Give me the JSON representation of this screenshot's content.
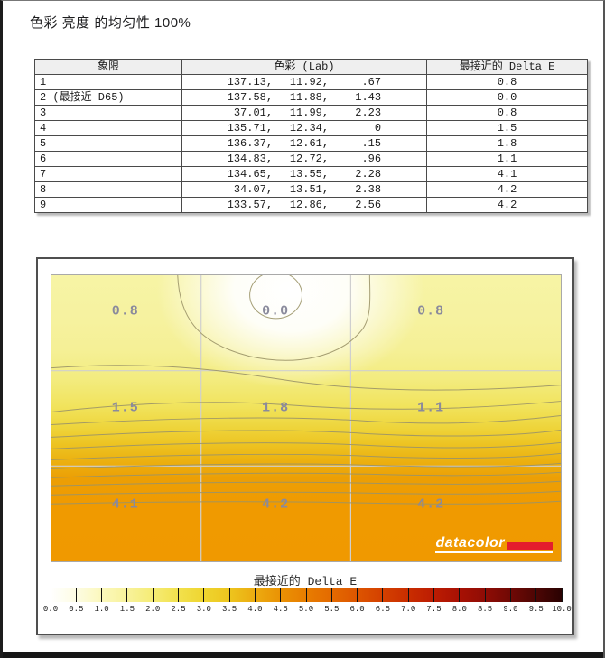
{
  "page": {
    "title": "色彩 亮度 的均匀性 100%"
  },
  "table": {
    "columns": [
      "象限",
      "色彩 (Lab)",
      "最接近的 Delta E"
    ],
    "rows": [
      {
        "quadrant": "1",
        "lab": [
          "137.13,",
          "11.92,",
          ".67"
        ],
        "delta_e": "0.8"
      },
      {
        "quadrant": "2 (最接近 D65)",
        "lab": [
          "137.58,",
          "11.88,",
          "1.43"
        ],
        "delta_e": "0.0"
      },
      {
        "quadrant": "3",
        "lab": [
          "37.01,",
          "11.99,",
          "2.23"
        ],
        "delta_e": "0.8"
      },
      {
        "quadrant": "4",
        "lab": [
          "135.71,",
          "12.34,",
          "0"
        ],
        "delta_e": "1.5"
      },
      {
        "quadrant": "5",
        "lab": [
          "136.37,",
          "12.61,",
          ".15"
        ],
        "delta_e": "1.8"
      },
      {
        "quadrant": "6",
        "lab": [
          "134.83,",
          "12.72,",
          ".96"
        ],
        "delta_e": "1.1"
      },
      {
        "quadrant": "7",
        "lab": [
          "134.65,",
          "13.55,",
          "2.28"
        ],
        "delta_e": "4.1"
      },
      {
        "quadrant": "8",
        "lab": [
          "34.07,",
          "13.51,",
          "2.38"
        ],
        "delta_e": "4.2"
      },
      {
        "quadrant": "9",
        "lab": [
          "133.57,",
          "12.86,",
          "2.56"
        ],
        "delta_e": "4.2"
      }
    ]
  },
  "heatmap": {
    "cell_labels": [
      [
        "0.8",
        "0.0",
        "0.8"
      ],
      [
        "1.5",
        "1.8",
        "1.1"
      ],
      [
        "4.1",
        "4.2",
        "4.2"
      ]
    ],
    "cell_x_percent": [
      14.5,
      44,
      74.5
    ],
    "cell_y_percent": [
      12.5,
      46.5,
      80
    ],
    "label_color": "#8a8a9c",
    "logo_text": "datacolor",
    "logo_red": "#e41d2d"
  },
  "legend": {
    "title": "最接近的 Delta E",
    "tick_labels": [
      "0.0",
      "0.5",
      "1.0",
      "1.5",
      "2.0",
      "2.5",
      "3.0",
      "3.5",
      "4.0",
      "4.5",
      "5.0",
      "5.5",
      "6.0",
      "6.5",
      "7.0",
      "7.5",
      "8.0",
      "8.5",
      "9.0",
      "9.5",
      "10.0"
    ]
  },
  "chart_data": {
    "type": "heatmap",
    "title": "色彩 亮度 的均匀性 100%",
    "legend_title": "最接近的 Delta E",
    "grid_rows": 3,
    "grid_cols": 3,
    "values": [
      [
        0.8,
        0.0,
        0.8
      ],
      [
        1.5,
        1.8,
        1.1
      ],
      [
        4.1,
        4.2,
        4.2
      ]
    ],
    "scale_min": 0.0,
    "scale_max": 10.0,
    "scale_step": 0.5,
    "scale_colors": {
      "0.0": "#ffffff",
      "2.0": "#f5ec75",
      "4.0": "#ecab10",
      "6.0": "#dd5500",
      "8.0": "#a81104",
      "10.0": "#2a0202"
    },
    "table": {
      "columns": [
        "象限",
        "色彩 (Lab)",
        "最接近的 Delta E"
      ],
      "rows": [
        [
          "1",
          [
            137.13,
            11.92,
            0.67
          ],
          0.8
        ],
        [
          "2 (最接近 D65)",
          [
            137.58,
            11.88,
            1.43
          ],
          0.0
        ],
        [
          "3",
          [
            37.01,
            11.99,
            2.23
          ],
          0.8
        ],
        [
          "4",
          [
            135.71,
            12.34,
            0
          ],
          1.5
        ],
        [
          "5",
          [
            136.37,
            12.61,
            0.15
          ],
          1.8
        ],
        [
          "6",
          [
            134.83,
            12.72,
            0.96
          ],
          1.1
        ],
        [
          "7",
          [
            134.65,
            13.55,
            2.28
          ],
          4.1
        ],
        [
          "8",
          [
            34.07,
            13.51,
            2.38
          ],
          4.2
        ],
        [
          "9",
          [
            133.57,
            12.86,
            2.56
          ],
          4.2
        ]
      ]
    }
  }
}
